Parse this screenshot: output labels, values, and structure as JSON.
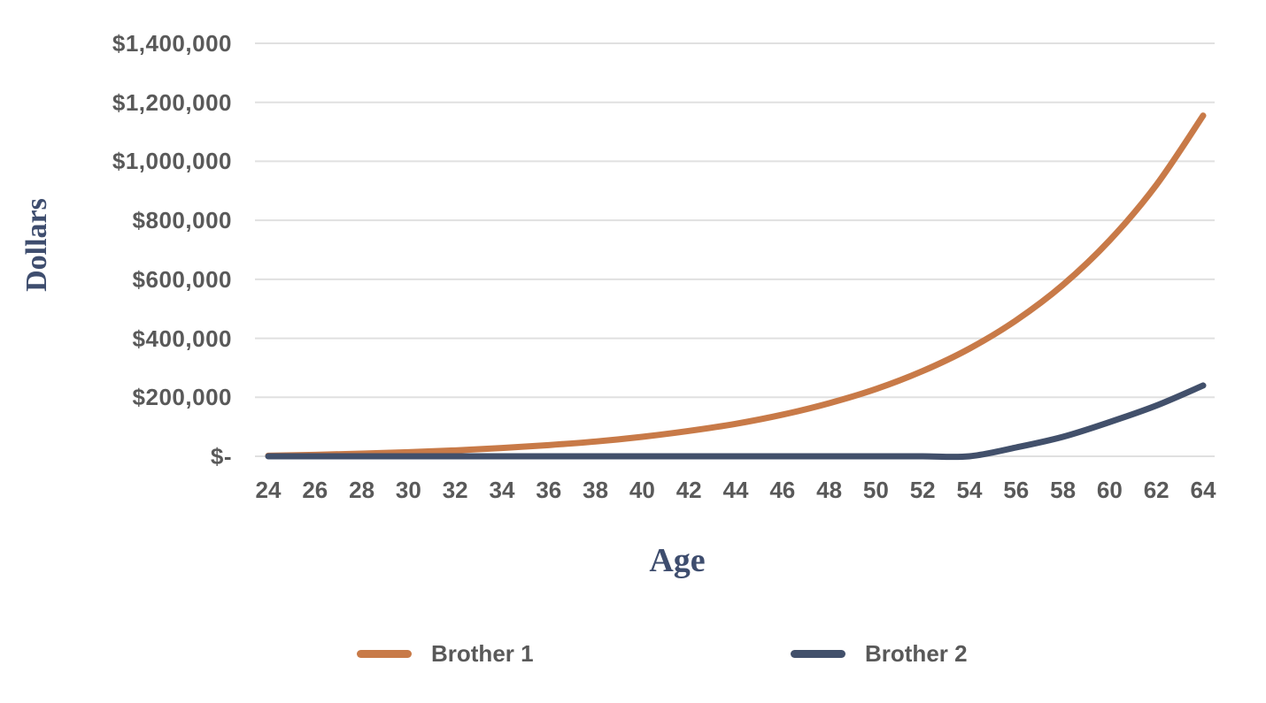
{
  "chart_data": {
    "type": "line",
    "title": "",
    "xlabel": "Age",
    "ylabel": "Dollars",
    "x": [
      24,
      26,
      28,
      30,
      32,
      34,
      36,
      38,
      40,
      42,
      44,
      46,
      48,
      50,
      52,
      54,
      56,
      58,
      60,
      62,
      64
    ],
    "series": [
      {
        "name": "Brother 1",
        "color": "#C87A48",
        "values": [
          2000,
          5000,
          9000,
          14000,
          20000,
          28000,
          38000,
          50000,
          66000,
          86000,
          110000,
          141000,
          180000,
          228000,
          289000,
          365000,
          461000,
          581000,
          732000,
          920000,
          1155000
        ]
      },
      {
        "name": "Brother 2",
        "color": "#42506B",
        "values": [
          0,
          0,
          0,
          0,
          0,
          0,
          0,
          0,
          0,
          0,
          0,
          0,
          0,
          0,
          0,
          0,
          30000,
          66000,
          116000,
          172000,
          240000
        ]
      }
    ],
    "xlim": [
      24,
      64
    ],
    "ylim": [
      0,
      1400000
    ],
    "y_ticks": [
      {
        "value": 0,
        "label": "$-"
      },
      {
        "value": 200000,
        "label": "$200,000"
      },
      {
        "value": 400000,
        "label": "$400,000"
      },
      {
        "value": 600000,
        "label": "$600,000"
      },
      {
        "value": 800000,
        "label": "$800,000"
      },
      {
        "value": 1000000,
        "label": "$1,000,000"
      },
      {
        "value": 1200000,
        "label": "$1,200,000"
      },
      {
        "value": 1400000,
        "label": "$1,400,000"
      }
    ],
    "grid": "horizontal",
    "grid_color": "#E0E0E0",
    "legend_position": "bottom",
    "text_color": "#595959",
    "axis_title_color": "#3E4D6E",
    "background_color": "#FFFFFF"
  }
}
